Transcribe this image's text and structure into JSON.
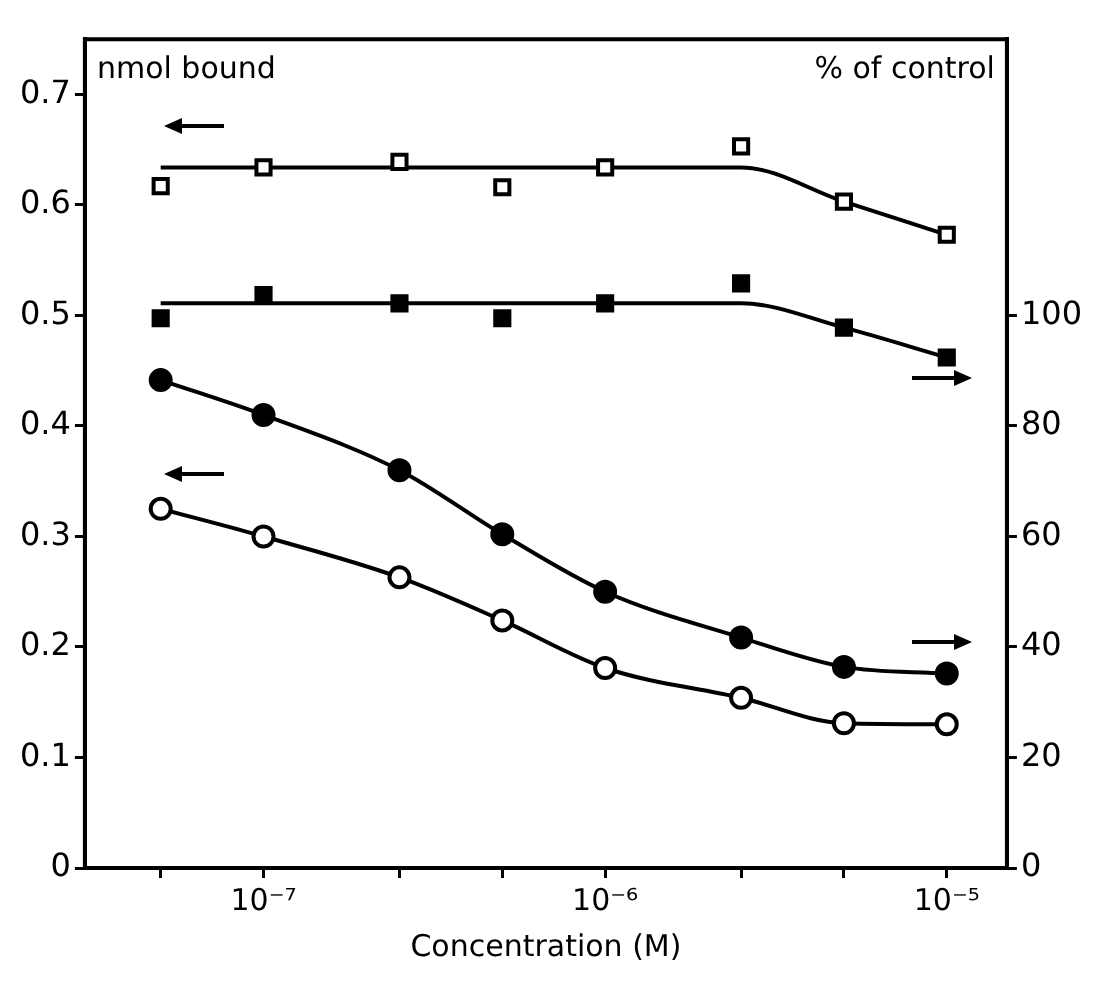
{
  "chart_data": {
    "type": "line",
    "xlabel": "Concentration (M)",
    "ylabel": "nmol bound",
    "y2label": "% of control",
    "x": [
      5e-08,
      1e-07,
      2.5e-07,
      5e-07,
      1e-06,
      2.5e-06,
      5e-06,
      1e-05
    ],
    "series": [
      {
        "type": "scatter",
        "color": "#000000",
        "marker": "square",
        "values": [
          0.617,
          0.634,
          0.639,
          0.616,
          0.634,
          0.653,
          0.603,
          0.573
        ]
      },
      {
        "color": "#000000",
        "marker": "none",
        "x": [
          5e-08,
          2.5e-06,
          5e-06,
          1e-05
        ],
        "values": [
          0.634,
          0.634,
          0.603,
          0.573
        ]
      },
      {
        "type": "scatter",
        "color": "#000000",
        "marker": "square",
        "axis": "y2",
        "values": [
          99.5,
          103.7,
          102.2,
          99.5,
          102.2,
          105.8,
          97.8,
          92.4
        ]
      },
      {
        "color": "#000000",
        "marker": "none",
        "axis": "y2",
        "x": [
          5e-08,
          2.5e-06,
          5e-06,
          1e-05
        ],
        "values": [
          102.2,
          102.2,
          97.8,
          92.4
        ]
      },
      {
        "color": "#000000",
        "marker": "circle",
        "axis": "y2",
        "values": [
          88.3,
          82,
          72,
          60.4,
          50,
          41.7,
          36.4,
          35.2
        ]
      },
      {
        "color": "#000000",
        "marker": "circle",
        "values": [
          0.325,
          0.3,
          0.263,
          0.224,
          0.181,
          0.154,
          0.131,
          0.13
        ]
      }
    ],
    "xlim": [
      3e-08,
      1.5e-05
    ],
    "xticks": [
      {
        "value": 5e-08,
        "label": null
      },
      {
        "value": 1e-07,
        "label": "10⁻⁷"
      },
      {
        "value": 2.5e-07,
        "label": null
      },
      {
        "value": 5e-07,
        "label": null
      },
      {
        "value": 1e-06,
        "label": "10⁻⁶"
      },
      {
        "value": 2.5e-06,
        "label": null
      },
      {
        "value": 5e-06,
        "label": null
      },
      {
        "value": 1e-05,
        "label": "10⁻⁵"
      }
    ],
    "ylim": [
      0,
      0.75
    ],
    "yticks": [
      0,
      0.1,
      0.2,
      0.3,
      0.4,
      0.5,
      0.6,
      0.7
    ],
    "y2lim": [
      0,
      150
    ],
    "y2ticks": [
      0,
      20,
      40,
      60,
      80,
      100
    ],
    "log": "x",
    "grid": false,
    "legend": false,
    "line_style": "solid"
  }
}
